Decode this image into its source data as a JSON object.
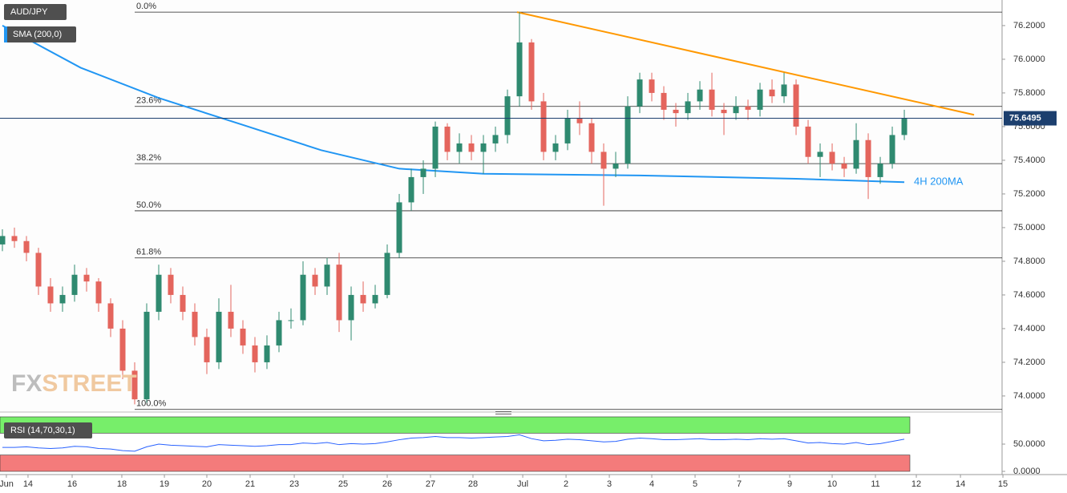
{
  "chart_data": {
    "type": "candlestick",
    "title": "AUD/JPY",
    "indicator": "SMA (200,0)",
    "rsi_title": "RSI (14,70,30,1)",
    "ma_label": "4H 200MA",
    "watermark": [
      "FX",
      "STREET"
    ],
    "up_color": "#2f8a70",
    "down_color": "#e4655d",
    "sma_color": "#2196f3",
    "trend_color": "#ff9800",
    "ohlc": [
      [
        74.9,
        74.99,
        74.86,
        74.95
      ],
      [
        74.95,
        75.0,
        74.88,
        74.92
      ],
      [
        74.92,
        74.95,
        74.8,
        74.85
      ],
      [
        74.85,
        74.88,
        74.6,
        74.65
      ],
      [
        74.65,
        74.7,
        74.5,
        74.55
      ],
      [
        74.55,
        74.65,
        74.5,
        74.6
      ],
      [
        74.6,
        74.78,
        74.56,
        74.72
      ],
      [
        74.72,
        74.76,
        74.62,
        74.68
      ],
      [
        74.68,
        74.7,
        74.5,
        74.55
      ],
      [
        74.55,
        74.58,
        74.35,
        74.4
      ],
      [
        74.4,
        74.45,
        74.1,
        74.15
      ],
      [
        74.15,
        74.2,
        73.95,
        73.98
      ],
      [
        73.98,
        74.55,
        73.96,
        74.5
      ],
      [
        74.5,
        74.78,
        74.45,
        74.72
      ],
      [
        74.72,
        74.76,
        74.55,
        74.6
      ],
      [
        74.6,
        74.65,
        74.45,
        74.5
      ],
      [
        74.5,
        74.55,
        74.3,
        74.35
      ],
      [
        74.35,
        74.4,
        74.13,
        74.2
      ],
      [
        74.2,
        74.58,
        74.16,
        74.5
      ],
      [
        74.5,
        74.66,
        74.35,
        74.4
      ],
      [
        74.4,
        74.45,
        74.25,
        74.3
      ],
      [
        74.3,
        74.35,
        74.14,
        74.2
      ],
      [
        74.2,
        74.36,
        74.16,
        74.3
      ],
      [
        74.3,
        74.5,
        74.26,
        74.45
      ],
      [
        74.45,
        74.52,
        74.4,
        74.45
      ],
      [
        74.45,
        74.8,
        74.42,
        74.72
      ],
      [
        74.72,
        74.76,
        74.6,
        74.65
      ],
      [
        74.65,
        74.82,
        74.6,
        74.78
      ],
      [
        74.78,
        74.85,
        74.38,
        74.45
      ],
      [
        74.45,
        74.65,
        74.33,
        74.6
      ],
      [
        74.6,
        74.68,
        74.5,
        74.55
      ],
      [
        74.55,
        74.66,
        74.52,
        74.6
      ],
      [
        74.6,
        74.9,
        74.58,
        74.85
      ],
      [
        74.85,
        75.2,
        74.82,
        75.15
      ],
      [
        75.15,
        75.35,
        75.1,
        75.3
      ],
      [
        75.3,
        75.4,
        75.2,
        75.35
      ],
      [
        75.35,
        75.63,
        75.3,
        75.6
      ],
      [
        75.6,
        75.62,
        75.4,
        75.45
      ],
      [
        75.45,
        75.56,
        75.38,
        75.5
      ],
      [
        75.5,
        75.55,
        75.4,
        75.45
      ],
      [
        75.45,
        75.55,
        75.32,
        75.5
      ],
      [
        75.5,
        75.6,
        75.45,
        75.55
      ],
      [
        75.55,
        75.82,
        75.5,
        75.78
      ],
      [
        75.78,
        76.28,
        75.72,
        76.1
      ],
      [
        76.1,
        76.12,
        75.7,
        75.75
      ],
      [
        75.75,
        75.8,
        75.4,
        75.45
      ],
      [
        75.45,
        75.55,
        75.4,
        75.5
      ],
      [
        75.5,
        75.7,
        75.46,
        75.65
      ],
      [
        75.65,
        75.75,
        75.55,
        75.62
      ],
      [
        75.62,
        75.65,
        75.38,
        75.45
      ],
      [
        75.45,
        75.5,
        75.13,
        75.35
      ],
      [
        75.35,
        75.45,
        75.3,
        75.38
      ],
      [
        75.38,
        75.78,
        75.35,
        75.72
      ],
      [
        75.72,
        75.92,
        75.68,
        75.88
      ],
      [
        75.88,
        75.92,
        75.75,
        75.8
      ],
      [
        75.8,
        75.84,
        75.64,
        75.7
      ],
      [
        75.7,
        75.74,
        75.6,
        75.68
      ],
      [
        75.68,
        75.8,
        75.64,
        75.75
      ],
      [
        75.75,
        75.87,
        75.7,
        75.82
      ],
      [
        75.82,
        75.92,
        75.66,
        75.7
      ],
      [
        75.7,
        75.74,
        75.55,
        75.68
      ],
      [
        75.68,
        75.78,
        75.64,
        75.72
      ],
      [
        75.72,
        75.76,
        75.64,
        75.7
      ],
      [
        75.7,
        75.86,
        75.66,
        75.82
      ],
      [
        75.82,
        75.88,
        75.74,
        75.78
      ],
      [
        75.78,
        75.92,
        75.74,
        75.85
      ],
      [
        75.85,
        75.88,
        75.55,
        75.6
      ],
      [
        75.6,
        75.64,
        75.38,
        75.42
      ],
      [
        75.42,
        75.5,
        75.3,
        75.45
      ],
      [
        75.45,
        75.5,
        75.34,
        75.38
      ],
      [
        75.38,
        75.42,
        75.3,
        75.35
      ],
      [
        75.35,
        75.62,
        75.32,
        75.52
      ],
      [
        75.52,
        75.56,
        75.17,
        75.3
      ],
      [
        75.3,
        75.42,
        75.26,
        75.38
      ],
      [
        75.38,
        75.6,
        75.35,
        75.55
      ],
      [
        75.55,
        75.7,
        75.52,
        75.65
      ]
    ],
    "sma": {
      "x": [
        0,
        6.5,
        13,
        20,
        26.5,
        33,
        40,
        53,
        66,
        75
      ],
      "values": [
        76.2,
        75.95,
        75.77,
        75.61,
        75.46,
        75.35,
        75.32,
        75.31,
        75.29,
        75.27
      ]
    },
    "trendline": {
      "x": [
        42.8,
        80.8
      ],
      "values": [
        76.28,
        75.67
      ]
    },
    "fib_start": 11,
    "fib": [
      {
        "value": 76.28,
        "label": "0.0%"
      },
      {
        "value": 75.72,
        "label": "23.6%"
      },
      {
        "value": 75.38,
        "label": "38.2%"
      },
      {
        "value": 75.1,
        "label": "50.0%"
      },
      {
        "value": 74.82,
        "label": "61.8%"
      },
      {
        "value": 73.92,
        "label": "100.0%"
      }
    ],
    "last": {
      "value": 75.6495,
      "label": "75.6495"
    },
    "xlim": [
      -0.2,
      83.13
    ],
    "ylim": [
      73.914,
      76.352
    ],
    "yticks": [
      {
        "value": 74.0,
        "label": "74.0000"
      },
      {
        "value": 74.2,
        "label": "74.2000"
      },
      {
        "value": 74.4,
        "label": "74.4000"
      },
      {
        "value": 74.6,
        "label": "74.6000"
      },
      {
        "value": 74.8,
        "label": "74.8000"
      },
      {
        "value": 75.0,
        "label": "75.0000"
      },
      {
        "value": 75.2,
        "label": "75.2000"
      },
      {
        "value": 75.4,
        "label": "75.4000"
      },
      {
        "value": 75.6,
        "label": "75.6000"
      },
      {
        "value": 75.8,
        "label": "75.8000"
      },
      {
        "value": 76.0,
        "label": "76.0000"
      },
      {
        "value": 76.2,
        "label": "76.2000"
      }
    ],
    "xticks": [
      {
        "value": 0.33,
        "label": "Jun"
      },
      {
        "value": 2.13,
        "label": "14"
      },
      {
        "value": 5.8,
        "label": "16"
      },
      {
        "value": 9.93,
        "label": "18"
      },
      {
        "value": 13.47,
        "label": "19"
      },
      {
        "value": 17,
        "label": "20"
      },
      {
        "value": 20.6,
        "label": "21"
      },
      {
        "value": 24.27,
        "label": "23"
      },
      {
        "value": 28.33,
        "label": "25"
      },
      {
        "value": 32,
        "label": "26"
      },
      {
        "value": 35.6,
        "label": "27"
      },
      {
        "value": 39.13,
        "label": "28"
      },
      {
        "value": 43.27,
        "label": "Jul"
      },
      {
        "value": 46.87,
        "label": "2"
      },
      {
        "value": 50.47,
        "label": "3"
      },
      {
        "value": 54,
        "label": "4"
      },
      {
        "value": 57.6,
        "label": "5"
      },
      {
        "value": 61.27,
        "label": "7"
      },
      {
        "value": 65.47,
        "label": "9"
      },
      {
        "value": 69,
        "label": "10"
      },
      {
        "value": 72.6,
        "label": "11"
      },
      {
        "value": 76,
        "label": "12"
      },
      {
        "value": 79.67,
        "label": "14"
      },
      {
        "value": 83.2,
        "label": "15"
      }
    ],
    "rsi": [
      44,
      44,
      45,
      43,
      42,
      43,
      46,
      45,
      42,
      41,
      38,
      37,
      45,
      50,
      48,
      47,
      46,
      45,
      49,
      48,
      47,
      46,
      47,
      49,
      49,
      52,
      51,
      53,
      49,
      51,
      50,
      51,
      54,
      58,
      61,
      62,
      64,
      62,
      62,
      61,
      62,
      63,
      64,
      67,
      60,
      56,
      57,
      59,
      58,
      56,
      54,
      55,
      59,
      61,
      60,
      58,
      58,
      59,
      60,
      58,
      58,
      59,
      58,
      60,
      59,
      60,
      56,
      52,
      53,
      51,
      50,
      53,
      49,
      51,
      55,
      59
    ],
    "rsi_ylim": [
      0,
      100
    ],
    "rsi_upper": 70,
    "rsi_lower": 30,
    "rsi_yticks": [
      {
        "value": 50,
        "label": "50.0000"
      },
      {
        "value": 0,
        "label": "0.0000"
      }
    ]
  }
}
